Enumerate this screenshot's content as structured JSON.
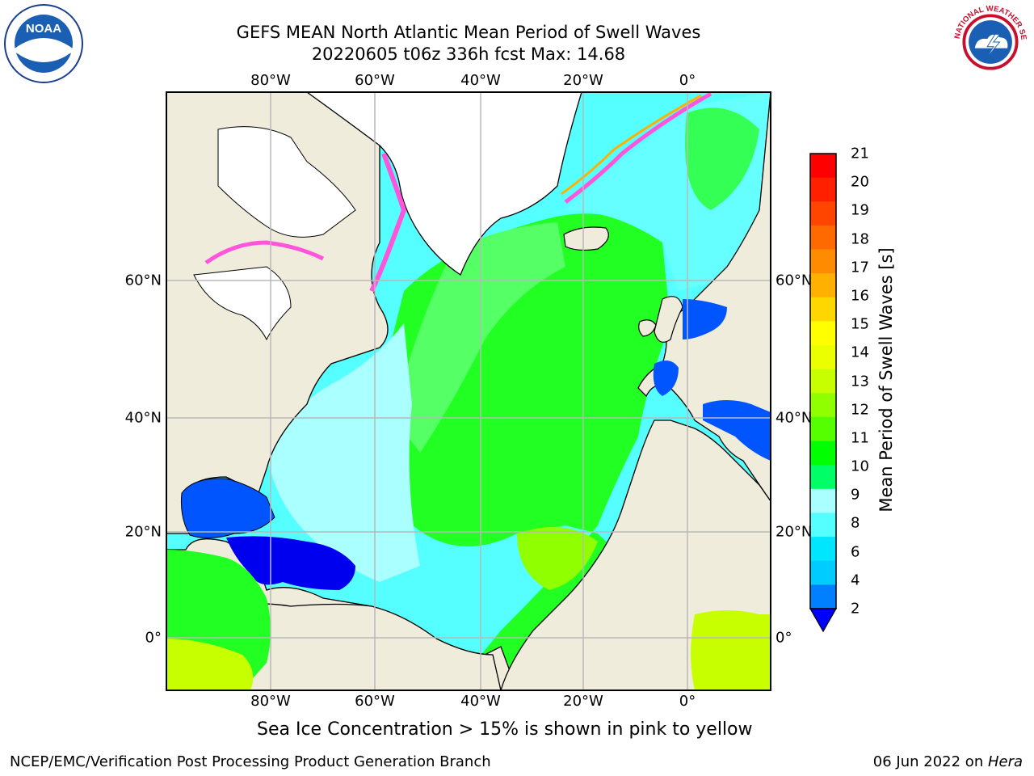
{
  "title": {
    "line1": "GEFS MEAN North Atlantic Mean Period of Swell Waves",
    "line2": "20220605 t06z 336h fcst   Max: 14.68"
  },
  "axes": {
    "lon_labels": [
      "80°W",
      "60°W",
      "40°W",
      "20°W",
      "0°"
    ],
    "lat_labels": [
      "60°N",
      "40°N",
      "20°N",
      "0°"
    ]
  },
  "colorbar": {
    "label": "Mean Period of Swell Waves [s]",
    "ticks": [
      "21",
      "20",
      "19",
      "18",
      "17",
      "16",
      "15",
      "14",
      "13",
      "12",
      "11",
      "10",
      "9",
      "8",
      "6",
      "4",
      "2"
    ],
    "colors_top_to_bottom": [
      "#ff0000",
      "#ff2000",
      "#ff4500",
      "#ff6a00",
      "#ff8c00",
      "#ffb000",
      "#ffd700",
      "#ffff00",
      "#ecff00",
      "#c8ff00",
      "#90ff00",
      "#55ff00",
      "#00ff00",
      "#00ff66",
      "#aaffff",
      "#55ffff",
      "#00e6ff",
      "#00ccff",
      "#0080ff"
    ],
    "extend_color": "#0000ff"
  },
  "map_colors": {
    "land": "#efecdc",
    "ice_free_land": "#ffffff",
    "green": "#22ff22",
    "light_green": "#55ff66",
    "cyan": "#66ffff",
    "light_cyan": "#aaffff",
    "blue": "#0055ff",
    "dark_blue": "#0000ee",
    "yellow_green": "#c8ff00",
    "pink": "#ff55dd"
  },
  "logos": {
    "noaa_text": "NOAA",
    "nws_text": "NATIONAL WEATHER SERVICE"
  },
  "notes": {
    "ice": "Sea Ice Concentration > 15% is shown in pink to yellow"
  },
  "footer": {
    "left": "NCEP/EMC/Verification Post Processing Product Generation Branch",
    "right_date": "06 Jun 2022 on ",
    "right_host": "Hera"
  }
}
